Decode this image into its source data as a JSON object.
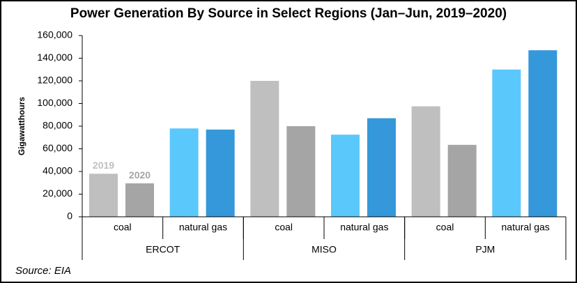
{
  "chart_data": {
    "type": "bar",
    "title": "Power Generation By Source in Select Regions (Jan–Jun, 2019–2020)",
    "y_label": "Gigawatthours",
    "source": "Source: EIA",
    "categories": [
      "coal",
      "natural gas",
      "coal",
      "natural gas",
      "coal",
      "natural gas"
    ],
    "groups": [
      "ERCOT",
      "MISO",
      "PJM"
    ],
    "series": [
      {
        "name": "2019",
        "colors": [
          "#bfbfbf",
          "#5bc8fb",
          "#bfbfbf",
          "#5bc8fb",
          "#bfbfbf",
          "#5bc8fb"
        ],
        "values": [
          38000,
          78000,
          120000,
          72500,
          97500,
          130000
        ]
      },
      {
        "name": "2020",
        "colors": [
          "#a5a5a5",
          "#3498db",
          "#a5a5a5",
          "#3498db",
          "#a5a5a5",
          "#3498db"
        ],
        "values": [
          29500,
          77000,
          80000,
          87000,
          63500,
          147000
        ]
      }
    ],
    "ylim": [
      0,
      160000
    ],
    "yticks": [
      0,
      {
        "value": 20000,
        "label": "20,000"
      },
      {
        "value": 40000,
        "label": "40,000"
      },
      {
        "value": 60000,
        "label": "60,000"
      },
      {
        "value": 80000,
        "label": "80,000"
      },
      {
        "value": 100000,
        "label": "100,000"
      },
      {
        "value": 120000,
        "label": "120,000"
      },
      {
        "value": 140000,
        "label": "140,000"
      },
      {
        "value": 160000,
        "label": "160,000"
      }
    ],
    "grid": false
  }
}
